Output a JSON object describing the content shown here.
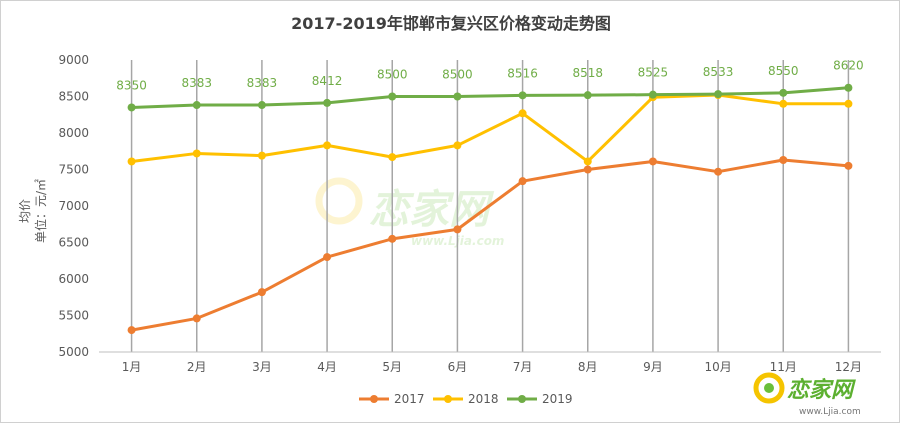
{
  "chart_data": {
    "type": "line",
    "title": "2017-2019年邯郸市复兴区价格变动走势图",
    "ylabel_line1": "均价",
    "ylabel_line2": "单位：元/㎡",
    "categories": [
      "1月",
      "2月",
      "3月",
      "4月",
      "5月",
      "6月",
      "7月",
      "8月",
      "9月",
      "10月",
      "11月",
      "12月"
    ],
    "ylim": [
      5000,
      9000
    ],
    "yticks": [
      5000,
      5500,
      6000,
      6500,
      7000,
      7500,
      8000,
      8500,
      9000
    ],
    "series": [
      {
        "name": "2017",
        "color": "#ed7d31",
        "values": [
          5300,
          5460,
          5820,
          6300,
          6550,
          6680,
          7340,
          7500,
          7610,
          7470,
          7630,
          7550
        ]
      },
      {
        "name": "2018",
        "color": "#ffc000",
        "values": [
          7610,
          7720,
          7690,
          7830,
          7670,
          7830,
          8270,
          7610,
          8490,
          8520,
          8400,
          8400
        ]
      },
      {
        "name": "2019",
        "color": "#70ad47",
        "values": [
          8350,
          8383,
          8383,
          8412,
          8500,
          8500,
          8516,
          8518,
          8525,
          8533,
          8550,
          8620
        ],
        "data_labels": [
          "8350",
          "8383",
          "8383",
          "8412",
          "8500",
          "8500",
          "8516",
          "8518",
          "8525",
          "8533",
          "8550",
          "8620"
        ]
      }
    ],
    "legend_position": "bottom",
    "grid": "vertical"
  },
  "watermark": {
    "center_text": "恋家网",
    "center_url": "www.Ljia.com",
    "corner_text": "恋家网",
    "corner_url": "www.Ljia.com",
    "icon": "snail-logo-icon"
  }
}
